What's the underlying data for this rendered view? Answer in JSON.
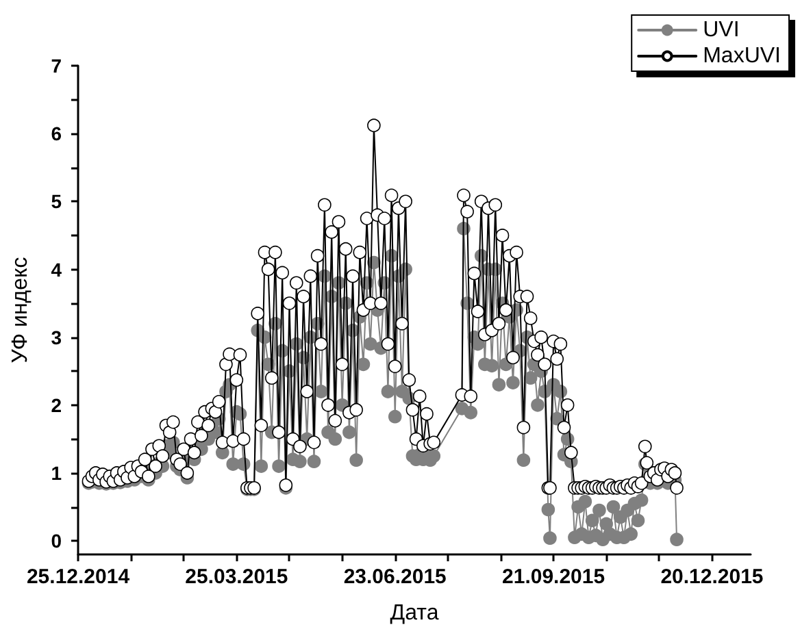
{
  "chart_data": {
    "type": "line",
    "xlabel": "Дата",
    "ylabel": "УФ индекс",
    "marker": "circle",
    "line_style": "solid",
    "grid": false,
    "legend": "top right",
    "xlim": [
      "2014-12-25",
      "2016-01-11"
    ],
    "xticks": [
      {
        "value": "2014-12-25",
        "label": "25.12.2014"
      },
      {
        "value": "2015-01-24",
        "label": null
      },
      {
        "value": "2015-02-23",
        "label": null
      },
      {
        "value": "2015-03-25",
        "label": "25.03.2015"
      },
      {
        "value": "2015-04-24",
        "label": null
      },
      {
        "value": "2015-05-24",
        "label": null
      },
      {
        "value": "2015-06-23",
        "label": "23.06.2015"
      },
      {
        "value": "2015-07-23",
        "label": null
      },
      {
        "value": "2015-08-22",
        "label": null
      },
      {
        "value": "2015-09-21",
        "label": "21.09.2015"
      },
      {
        "value": "2015-10-21",
        "label": null
      },
      {
        "value": "2015-11-20",
        "label": null
      },
      {
        "value": "2015-12-20",
        "label": "20.12.2015"
      }
    ],
    "ylim": [
      -0.2,
      7
    ],
    "yticks": [
      0,
      {
        "value": 0.5,
        "label": null
      },
      1,
      {
        "value": 1.5,
        "label": null
      },
      2,
      {
        "value": 2.5,
        "label": null
      },
      3,
      {
        "value": 3.5,
        "label": null
      },
      4,
      {
        "value": 4.5,
        "label": null
      },
      5,
      {
        "value": 5.5,
        "label": null
      },
      6,
      {
        "value": 6.5,
        "label": null
      },
      7
    ],
    "x": [
      "2014-12-31",
      "2015-01-02",
      "2015-01-04",
      "2015-01-06",
      "2015-01-08",
      "2015-01-10",
      "2015-01-12",
      "2015-01-14",
      "2015-01-16",
      "2015-01-18",
      "2015-01-20",
      "2015-01-22",
      "2015-01-24",
      "2015-01-26",
      "2015-01-28",
      "2015-01-30",
      "2015-02-01",
      "2015-02-03",
      "2015-02-05",
      "2015-02-07",
      "2015-02-09",
      "2015-02-11",
      "2015-02-13",
      "2015-02-15",
      "2015-02-17",
      "2015-02-19",
      "2015-02-21",
      "2015-02-23",
      "2015-02-25",
      "2015-02-27",
      "2015-03-01",
      "2015-03-03",
      "2015-03-05",
      "2015-03-07",
      "2015-03-09",
      "2015-03-11",
      "2015-03-13",
      "2015-03-15",
      "2015-03-17",
      "2015-03-19",
      "2015-03-21",
      "2015-03-23",
      "2015-03-25",
      "2015-03-27",
      "2015-03-29",
      "2015-03-31",
      "2015-04-02",
      "2015-04-04",
      "2015-04-06",
      "2015-04-08",
      "2015-04-10",
      "2015-04-12",
      "2015-04-14",
      "2015-04-16",
      "2015-04-18",
      "2015-04-20",
      "2015-04-22",
      "2015-04-24",
      "2015-04-26",
      "2015-04-28",
      "2015-04-30",
      "2015-05-02",
      "2015-05-04",
      "2015-05-06",
      "2015-05-08",
      "2015-05-10",
      "2015-05-12",
      "2015-05-14",
      "2015-05-16",
      "2015-05-18",
      "2015-05-20",
      "2015-05-22",
      "2015-05-24",
      "2015-05-26",
      "2015-05-28",
      "2015-05-30",
      "2015-06-01",
      "2015-06-03",
      "2015-06-05",
      "2015-06-07",
      "2015-06-09",
      "2015-06-11",
      "2015-06-13",
      "2015-06-15",
      "2015-06-17",
      "2015-06-19",
      "2015-06-21",
      "2015-06-23",
      "2015-06-25",
      "2015-06-27",
      "2015-06-29",
      "2015-07-01",
      "2015-07-03",
      "2015-07-05",
      "2015-07-07",
      "2015-07-09",
      "2015-07-11",
      "2015-07-13",
      "2015-07-15",
      "2015-07-31",
      "2015-08-01",
      "2015-08-03",
      "2015-08-05",
      "2015-08-07",
      "2015-08-09",
      "2015-08-11",
      "2015-08-13",
      "2015-08-15",
      "2015-08-17",
      "2015-08-19",
      "2015-08-21",
      "2015-08-23",
      "2015-08-25",
      "2015-08-27",
      "2015-08-29",
      "2015-08-31",
      "2015-09-02",
      "2015-09-04",
      "2015-09-06",
      "2015-09-08",
      "2015-09-10",
      "2015-09-12",
      "2015-09-14",
      "2015-09-16",
      "2015-09-18",
      "2015-09-19",
      "2015-09-21",
      "2015-09-23",
      "2015-09-25",
      "2015-09-27",
      "2015-09-29",
      "2015-10-01",
      "2015-10-03",
      "2015-10-05",
      "2015-10-07",
      "2015-10-09",
      "2015-10-11",
      "2015-10-13",
      "2015-10-15",
      "2015-10-17",
      "2015-10-19",
      "2015-10-21",
      "2015-10-23",
      "2015-10-25",
      "2015-10-27",
      "2015-10-29",
      "2015-10-31",
      "2015-11-02",
      "2015-11-04",
      "2015-11-06",
      "2015-11-08",
      "2015-11-10",
      "2015-11-12",
      "2015-11-13",
      "2015-11-15",
      "2015-11-17",
      "2015-11-19",
      "2015-11-21",
      "2015-11-23",
      "2015-11-25",
      "2015-11-27",
      "2015-11-29",
      "2015-11-30"
    ],
    "series": [
      {
        "name": "UVI",
        "color": "#808080",
        "values": [
          0.85,
          0.87,
          0.9,
          0.85,
          0.88,
          0.84,
          0.9,
          0.85,
          0.9,
          0.86,
          0.92,
          0.88,
          0.95,
          0.9,
          1.0,
          0.95,
          1.05,
          0.9,
          1.1,
          1.0,
          1.15,
          1.1,
          1.4,
          1.3,
          1.45,
          1.1,
          1.05,
          1.2,
          0.93,
          1.3,
          1.2,
          1.5,
          1.35,
          1.6,
          1.5,
          1.7,
          1.6,
          1.8,
          1.3,
          2.2,
          2.3,
          1.13,
          1.9,
          1.87,
          1.13,
          0.76,
          0.76,
          0.76,
          3.1,
          1.1,
          3.0,
          2.6,
          1.6,
          3.2,
          1.1,
          2.8,
          0.78,
          2.5,
          1.2,
          2.9,
          1.17,
          2.7,
          1.5,
          3.0,
          1.17,
          3.2,
          2.2,
          3.9,
          1.6,
          3.6,
          1.5,
          3.8,
          2.0,
          3.5,
          1.6,
          3.1,
          1.19,
          3.3,
          2.6,
          3.8,
          2.9,
          4.1,
          3.4,
          2.84,
          3.8,
          2.2,
          4.2,
          1.83,
          3.9,
          2.2,
          4.0,
          2.1,
          1.25,
          1.2,
          1.27,
          1.2,
          1.3,
          1.19,
          1.25,
          1.95,
          4.6,
          3.5,
          1.89,
          3.0,
          2.9,
          4.2,
          2.6,
          4.0,
          2.58,
          4.0,
          2.3,
          3.5,
          2.6,
          3.3,
          2.33,
          3.4,
          2.8,
          1.19,
          3.0,
          2.4,
          2.6,
          2.0,
          2.5,
          2.2,
          0.46,
          0.04,
          2.3,
          1.8,
          2.2,
          1.27,
          1.5,
          1.17,
          0.05,
          0.5,
          0.1,
          0.58,
          0.05,
          0.3,
          0.08,
          0.45,
          0.02,
          0.25,
          0.1,
          0.5,
          0.05,
          0.35,
          0.05,
          0.45,
          0.1,
          0.55,
          0.3,
          0.6,
          1.13,
          0.9,
          0.85,
          0.9,
          0.85,
          0.95,
          0.9,
          0.85,
          0.95,
          0.9,
          0.02
        ]
      },
      {
        "name": "MaxUVI",
        "color": "#000000",
        "values": [
          0.88,
          0.95,
          1.0,
          0.9,
          0.98,
          0.87,
          0.95,
          0.88,
          1.0,
          0.9,
          1.02,
          0.93,
          1.08,
          0.95,
          1.1,
          1.02,
          1.2,
          0.95,
          1.35,
          1.1,
          1.4,
          1.25,
          1.7,
          1.6,
          1.75,
          1.2,
          1.13,
          1.35,
          1.0,
          1.5,
          1.3,
          1.75,
          1.55,
          1.9,
          1.7,
          1.95,
          1.9,
          2.05,
          1.45,
          2.6,
          2.75,
          1.47,
          2.37,
          2.74,
          1.5,
          0.78,
          0.78,
          0.78,
          3.35,
          1.7,
          4.25,
          4.0,
          2.4,
          4.25,
          1.6,
          3.95,
          0.82,
          3.5,
          1.5,
          3.8,
          1.39,
          3.6,
          2.2,
          3.9,
          1.45,
          4.2,
          2.9,
          4.95,
          2.0,
          4.55,
          1.77,
          4.7,
          2.6,
          4.3,
          1.89,
          3.9,
          1.93,
          4.25,
          3.4,
          4.75,
          3.5,
          6.12,
          4.8,
          3.5,
          4.75,
          2.9,
          5.09,
          2.57,
          4.9,
          3.2,
          5.0,
          2.37,
          1.93,
          1.5,
          2.13,
          1.4,
          1.87,
          1.43,
          1.45,
          2.15,
          5.09,
          4.85,
          2.13,
          3.94,
          3.38,
          5.0,
          3.04,
          4.9,
          3.1,
          4.95,
          3.2,
          4.5,
          3.4,
          4.2,
          2.7,
          4.25,
          3.6,
          1.67,
          3.6,
          3.28,
          2.94,
          2.74,
          3.0,
          2.6,
          0.78,
          0.78,
          2.94,
          2.68,
          2.9,
          1.67,
          2.0,
          1.3,
          0.78,
          0.78,
          0.78,
          0.8,
          0.78,
          0.78,
          0.8,
          0.78,
          0.78,
          0.78,
          0.82,
          0.78,
          0.78,
          0.8,
          0.78,
          0.82,
          0.78,
          0.85,
          0.8,
          0.85,
          1.39,
          1.15,
          0.95,
          1.0,
          0.9,
          1.05,
          1.07,
          0.95,
          1.05,
          1.0,
          0.78
        ],
        "colors": [
          "#ffffff",
          "#ffffff",
          "#ffffff",
          "#ffffff",
          "#ffffff",
          "#ffffff",
          "#ffffff",
          "#ffffff",
          "#ffffff",
          "#ffffff",
          "#ffffff",
          "#ffffff",
          "#ffffff",
          "#ffffff",
          "#ffffff",
          "#ffffff",
          "#ffffff",
          "#ffffff",
          "#ffffff",
          "#ffffff",
          "#ffffff",
          "#ffffff",
          "#ffffff",
          "#ffffff",
          "#ffffff",
          "#ffffff",
          "#ffffff",
          "#ffffff",
          "#ffffff",
          "#ffffff",
          "#ffffff",
          "#ffffff",
          "#ffffff",
          "#ffffff",
          "#ffffff",
          "#ffffff",
          "#ffffff",
          "#ffffff",
          "#ffffff",
          "#ffffff",
          "#ffffff",
          "#ffffff",
          "#ffffff",
          "#ffffff",
          "#ffffff",
          "#ffffff",
          "#ffffff",
          "#ffffff",
          "#ffffff",
          "#ffffff",
          "#ffffff",
          "#ffffff",
          "#ffffff",
          "#ffffff",
          "#ffffff",
          "#ffffff",
          "#ffffff",
          "#ffffff",
          "#ffffff",
          "#ffffff",
          "#ffffff",
          "#ffffff",
          "#ffffff",
          "#ffffff",
          "#ffffff",
          "#ffffff",
          "#ffffff",
          "#ffffff",
          "#ffffff",
          "#ffffff",
          "#ffffff",
          "#ffffff",
          "#ffffff",
          "#ffffff",
          "#ffffff",
          "#ffffff",
          "#ffffff",
          "#ffffff",
          "#ffffff",
          "#ffffff",
          "#ffffff",
          "#ffffff",
          "#ffffff",
          "#ffffff",
          "#ffffff",
          "#ffffff",
          "#ffffff",
          "#ffffff",
          "#ffffff",
          "#ffffff",
          "#ffffff",
          "#ffffff",
          "#ffffff",
          "#ffffff",
          "#ffffff",
          "#ffffff",
          "#ffffff",
          "#ffffff",
          "#ffffff",
          "#ffffff",
          "#ffffff",
          "#ffffff",
          "#ffffff",
          "#ffffff",
          "#ffffff",
          "#ffffff",
          "#ffffff",
          "#ffffff",
          "#ffffff",
          "#ffffff",
          "#ffffff",
          "#ffffff",
          "#ffffff",
          "#ffffff",
          "#ffffff",
          "#ffffff",
          "#ffffff",
          "#ffffff",
          "#ffffff",
          "#ffffff",
          "#ffffff",
          "#ffffff",
          "#ffffff",
          "#ffffff",
          "#ffffff",
          "#ffffff",
          "#ffffff",
          "#ffffff",
          "#ffffff",
          "#ffffff",
          "#ffffff",
          "#ffffff",
          "#ffffff",
          "#ffffff",
          "#ffffff",
          "#ffffff",
          "#ffffff",
          "#ffffff",
          "#ffffff",
          "#ffffff",
          "#ffffff",
          "#ffffff",
          "#ffffff",
          "#ffffff",
          "#ffffff",
          "#ffffff",
          "#ffffff",
          "#ffffff",
          "#ffffff",
          "#ffffff",
          "#ffffff",
          "#ffffff",
          "#ffffff",
          "#ffffff",
          "#ffffff",
          "#ffffff",
          "#ffffff",
          "#ffffff",
          "#ffffff",
          "#ffffff",
          "#ffffff",
          "#ffffff",
          "#ffffff"
        ]
      }
    ]
  }
}
